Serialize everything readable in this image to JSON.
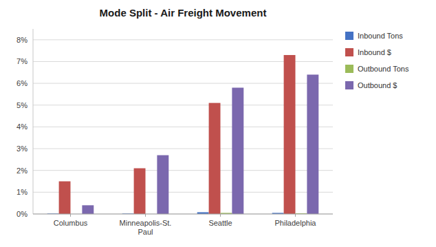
{
  "chart_data": {
    "type": "bar",
    "title": "Mode Split - Air Freight Movement",
    "categories": [
      "Columbus",
      "Minneapolis-St.\nPaul",
      "Seattle",
      "Philadelphia"
    ],
    "series": [
      {
        "name": "Inbound Tons",
        "color": "#4472C4",
        "values": [
          0.0002,
          0.0002,
          0.0008,
          0.0005
        ]
      },
      {
        "name": "Inbound $",
        "color": "#C0504D",
        "values": [
          0.015,
          0.021,
          0.051,
          0.073
        ]
      },
      {
        "name": "Outbound Tons",
        "color": "#9BBB59",
        "values": [
          0.0,
          0.0,
          0.0005,
          0.0003
        ]
      },
      {
        "name": "Outbound $",
        "color": "#7B68AE",
        "values": [
          0.004,
          0.027,
          0.058,
          0.064
        ]
      }
    ],
    "ylim": [
      0,
      0.085
    ],
    "yticks": [
      {
        "value": 0.0,
        "label": "0%"
      },
      {
        "value": 0.01,
        "label": "1%"
      },
      {
        "value": 0.02,
        "label": "2%"
      },
      {
        "value": 0.03,
        "label": "3%"
      },
      {
        "value": 0.04,
        "label": "4%"
      },
      {
        "value": 0.05,
        "label": "5%"
      },
      {
        "value": 0.06,
        "label": "6%"
      },
      {
        "value": 0.07,
        "label": "7%"
      },
      {
        "value": 0.08,
        "label": "8%"
      }
    ],
    "grid": true,
    "legend": "right"
  }
}
